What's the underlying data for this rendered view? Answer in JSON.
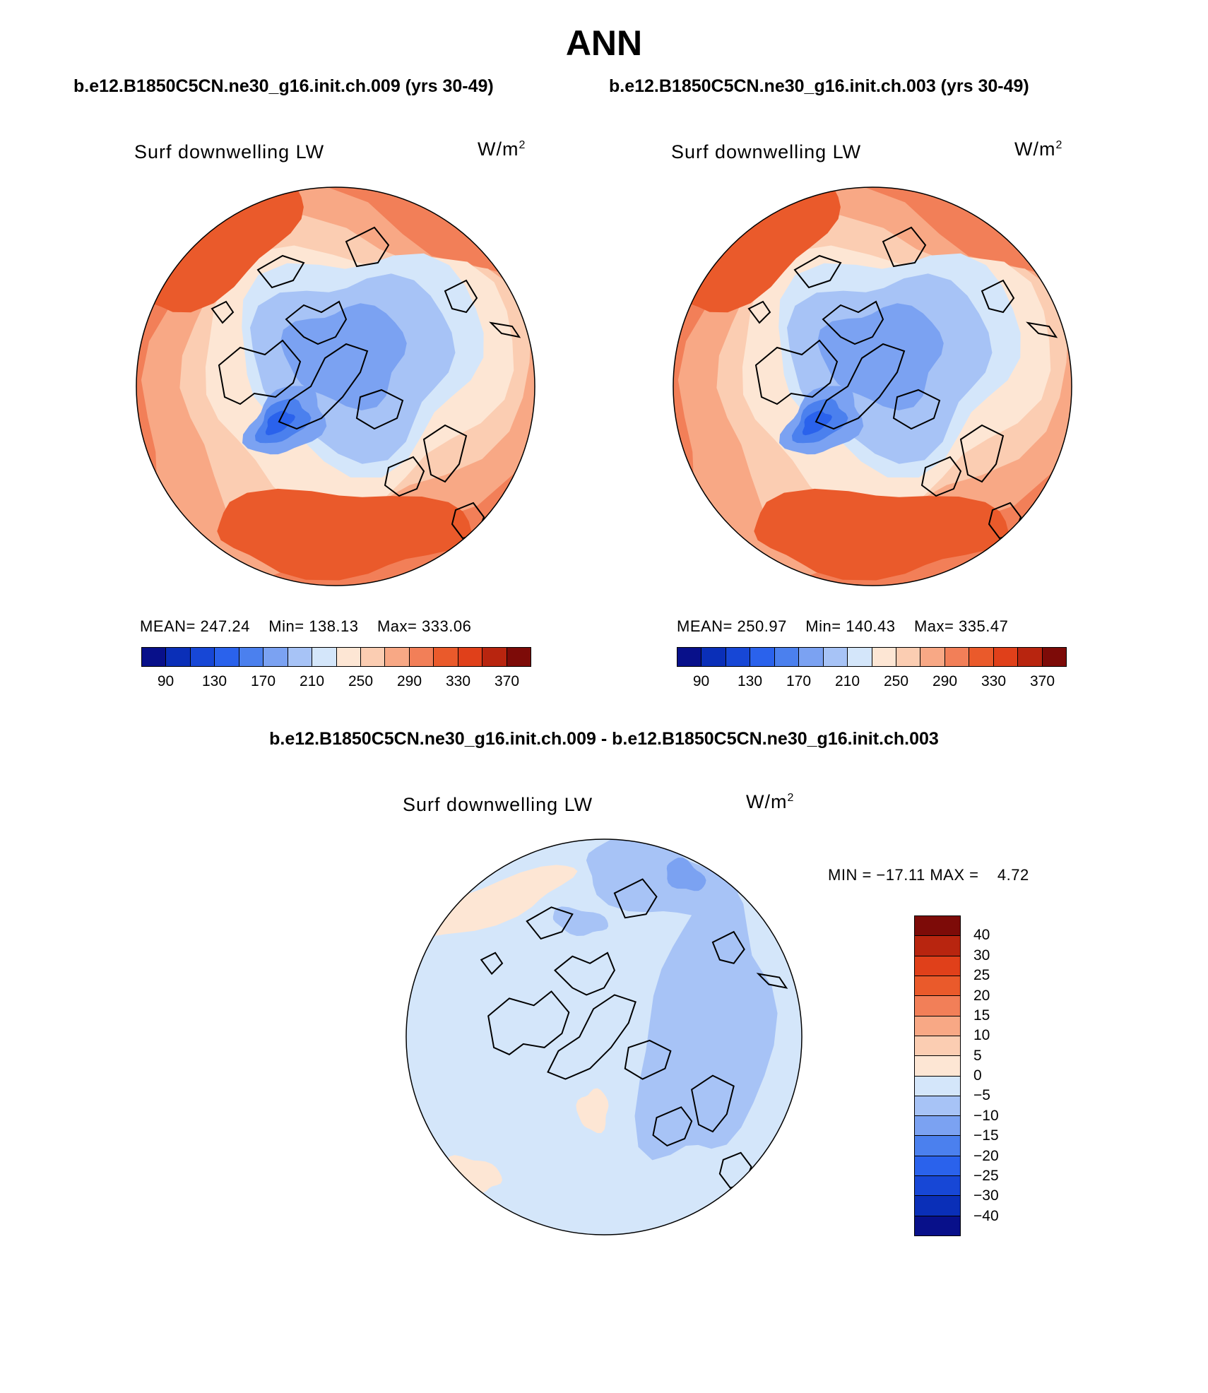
{
  "title": "ANN",
  "subtitle_left": "b.e12.B1850C5CN.ne30_g16.init.ch.009 (yrs 30-49)",
  "subtitle_right": "b.e12.B1850C5CN.ne30_g16.init.ch.003 (yrs 30-49)",
  "diff_title": "b.e12.B1850C5CN.ne30_g16.init.ch.009 - b.e12.B1850C5CN.ne30_g16.init.ch.003",
  "colors": {
    "abs_scale": [
      "#08108a",
      "#0a2fb8",
      "#1747d6",
      "#2a62ec",
      "#4b80ee",
      "#7ba2f2",
      "#a7c3f6",
      "#d4e6fa",
      "#fde6d4",
      "#fbcdb2",
      "#f8a885",
      "#f27f58",
      "#ea5a2b",
      "#e0401a",
      "#b8250f",
      "#7d0b08"
    ],
    "diff_scale": [
      "#08108a",
      "#0a2fb8",
      "#1747d6",
      "#2a62ec",
      "#4b80ee",
      "#7ba2f2",
      "#a7c3f6",
      "#d4e6fa",
      "#fde6d4",
      "#fbcdb2",
      "#f8a885",
      "#f27f58",
      "#ea5a2b",
      "#e0401a",
      "#b8250f",
      "#7d0b08"
    ]
  },
  "chart_data": [
    {
      "type": "heatmap",
      "projection": "north polar stereographic",
      "variable": "Surf downwelling LW",
      "units_base": "W/m",
      "units_exp": "2",
      "case": "b.e12.B1850C5CN.ne30_g16.init.ch.009 (yrs 30-49)",
      "stats": {
        "mean_label": "MEAN=",
        "mean": "247.24",
        "min_label": "Min=",
        "min": "138.13",
        "max_label": "Max=",
        "max": "333.06"
      },
      "colorbar_ticks": [
        "90",
        "130",
        "170",
        "210",
        "250",
        "290",
        "330",
        "370"
      ],
      "contour_levels": [
        90,
        110,
        130,
        150,
        170,
        190,
        210,
        230,
        250,
        270,
        290,
        310,
        330,
        350,
        370
      ]
    },
    {
      "type": "heatmap",
      "projection": "north polar stereographic",
      "variable": "Surf downwelling LW",
      "units_base": "W/m",
      "units_exp": "2",
      "case": "b.e12.B1850C5CN.ne30_g16.init.ch.003 (yrs 30-49)",
      "stats": {
        "mean_label": "MEAN=",
        "mean": "250.97",
        "min_label": "Min=",
        "min": "140.43",
        "max_label": "Max=",
        "max": "335.47"
      },
      "colorbar_ticks": [
        "90",
        "130",
        "170",
        "210",
        "250",
        "290",
        "330",
        "370"
      ],
      "contour_levels": [
        90,
        110,
        130,
        150,
        170,
        190,
        210,
        230,
        250,
        270,
        290,
        310,
        330,
        350,
        370
      ]
    },
    {
      "type": "heatmap",
      "projection": "north polar stereographic",
      "variable": "Surf downwelling LW",
      "units_base": "W/m",
      "units_exp": "2",
      "case": "difference",
      "stats": {
        "min_label": "MIN =",
        "min": "−17.11",
        "max_label": "MAX =",
        "max": "4.72"
      },
      "colorbar_ticks": [
        "40",
        "30",
        "25",
        "20",
        "15",
        "10",
        "5",
        "0",
        "−5",
        "−10",
        "−15",
        "−20",
        "−25",
        "−30",
        "−40"
      ],
      "contour_levels": [
        -40,
        -30,
        -25,
        -20,
        -15,
        -10,
        -5,
        0,
        5,
        10,
        15,
        20,
        25,
        30,
        40
      ]
    }
  ]
}
